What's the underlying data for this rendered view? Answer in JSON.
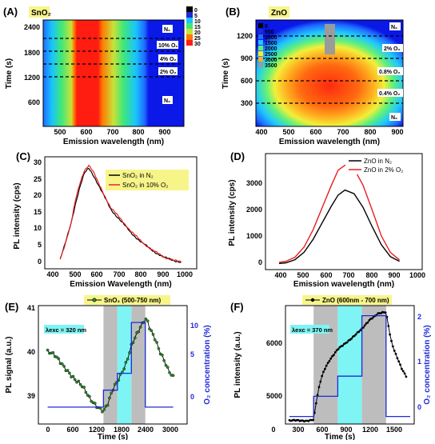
{
  "panels": {
    "A": {
      "letter": "(A)",
      "tag": "SnO₂",
      "ylabel": "Time (s)",
      "xlabel": "Emission wavelength (nm)",
      "yticks": [
        "2400",
        "1800",
        "1200",
        "600"
      ],
      "xticks": [
        "500",
        "600",
        "700",
        "800",
        "900"
      ],
      "scale": [
        "0",
        "5",
        "10",
        "15",
        "20",
        "25",
        "30"
      ],
      "gas": [
        "N₂",
        "10% O₂",
        "4% O₂",
        "2% O₂",
        "N₂"
      ]
    },
    "B": {
      "letter": "(B)",
      "tag": "ZnO",
      "ylabel": "Time (s)",
      "xlabel": "Emission wavelength (nm)",
      "yticks": [
        "1200",
        "900",
        "600",
        "300"
      ],
      "xticks": [
        "400",
        "500",
        "600",
        "700",
        "800",
        "900"
      ],
      "scale": [
        "0",
        "500",
        "1000",
        "1500",
        "2000",
        "2500",
        "3000",
        "3500"
      ],
      "gas": [
        "N₂",
        "2% O₂",
        "0.8% O₂",
        "0.4% O₂",
        "N₂"
      ]
    },
    "C": {
      "letter": "(C)",
      "ylabel": "PL intensity (cps)",
      "xlabel": "Emission Wavelength (nm)",
      "yticks": [
        "0",
        "5",
        "10",
        "15",
        "20",
        "25",
        "30"
      ],
      "xticks": [
        "400",
        "500",
        "600",
        "700",
        "800",
        "900",
        "1000"
      ],
      "legend": [
        "SnO₂ in N₂",
        "SnO₂ in 10% O₂"
      ]
    },
    "D": {
      "letter": "(D)",
      "ylabel": "PL intensity (cps)",
      "xlabel": "Emission wavelength (nm)",
      "yticks": [
        "0",
        "1000",
        "2000",
        "3000"
      ],
      "xticks": [
        "400",
        "500",
        "600",
        "700",
        "800",
        "900",
        "1000"
      ],
      "legend": [
        "ZnO in N₂",
        "ZnO in 2% O₂"
      ]
    },
    "E": {
      "letter": "(E)",
      "ylabel": "PL signal (a.u.)",
      "xlabel": "Time (s)",
      "ylabel2": "O₂ concentration (%)",
      "yticks": [
        "39",
        "40",
        "41"
      ],
      "xticks": [
        "0",
        "600",
        "1200",
        "1800",
        "2400",
        "3000"
      ],
      "yticks2": [
        "0",
        "5",
        "10"
      ],
      "legend": "SnO₂ (500-750 nm)",
      "exc": "λexc = 320 nm"
    },
    "F": {
      "letter": "(F)",
      "ylabel": "PL intensity (a.u.)",
      "xlabel": "Time (s)",
      "ylabel2": "O₂ concentration (%)",
      "yticks": [
        "5000",
        "6000"
      ],
      "xticks": [
        "0",
        "300",
        "600",
        "900",
        "1200",
        "1500"
      ],
      "yticks2": [
        "0",
        "1",
        "2"
      ],
      "legend": "ZnO (600nm - 700 nm)",
      "exc": "λexc = 370 nm"
    }
  },
  "colors": {
    "black": "#000000",
    "red": "#e8201f",
    "blue": "#1f2ad8",
    "green": "#2b8a2b",
    "gray": "#bdbdbd",
    "cyan": "#7ff4f4",
    "tag": "#f7f58a"
  },
  "chart_data": [
    {
      "type": "heatmap",
      "panel": "A",
      "xlabel": "Emission wavelength (nm)",
      "ylabel": "Time (s)",
      "xlim": [
        430,
        970
      ],
      "ylim": [
        420,
        2750
      ],
      "scale_range": [
        0,
        30
      ],
      "profile": {
        "wavelength": [
          430,
          470,
          500,
          530,
          560,
          590,
          620,
          650,
          700,
          750,
          800,
          850,
          900,
          950,
          970
        ],
        "intensity": [
          4,
          13,
          17,
          22,
          29,
          29,
          28,
          24,
          19,
          15,
          11,
          6,
          3,
          1,
          1
        ]
      },
      "gas_switch_times": [
        1200,
        1500,
        1800,
        2100
      ]
    },
    {
      "type": "heatmap",
      "panel": "B",
      "xlabel": "Emission wavelength (nm)",
      "ylabel": "Time (s)",
      "xlim": [
        380,
        920
      ],
      "ylim": [
        150,
        1380
      ],
      "scale_range": [
        0,
        3500
      ],
      "gas_switch_times": [
        300,
        600,
        900,
        1200
      ]
    },
    {
      "type": "line",
      "panel": "C",
      "xlabel": "Emission Wavelength (nm)",
      "ylabel": "PL intensity (cps)",
      "xlim": [
        360,
        1050
      ],
      "ylim": [
        -2,
        32
      ],
      "series": [
        {
          "name": "SnO₂ in N₂",
          "x": [
            430,
            450,
            480,
            500,
            520,
            540,
            560,
            580,
            600,
            630,
            660,
            700,
            750,
            800,
            850,
            900,
            950,
            980
          ],
          "values": [
            1,
            5,
            12,
            18,
            23,
            27,
            28.5,
            26.5,
            24,
            20,
            16,
            13,
            9,
            6,
            3.5,
            1.5,
            0.5,
            0
          ]
        },
        {
          "name": "SnO₂ in 10% O₂",
          "x": [
            430,
            450,
            480,
            500,
            520,
            540,
            560,
            580,
            600,
            630,
            660,
            700,
            750,
            800,
            850,
            900,
            950,
            980
          ],
          "values": [
            1,
            5,
            12,
            19,
            24,
            28,
            29.5,
            27.5,
            24.5,
            20.5,
            16.5,
            13.5,
            9.5,
            6.2,
            3.6,
            1.6,
            0.5,
            0
          ]
        }
      ]
    },
    {
      "type": "line",
      "panel": "D",
      "xlabel": "Emission wavelength (nm)",
      "ylabel": "PL intensity (cps)",
      "xlim": [
        330,
        1020
      ],
      "ylim": [
        -200,
        4000
      ],
      "series": [
        {
          "name": "ZnO in N₂",
          "x": [
            390,
            420,
            460,
            500,
            540,
            580,
            620,
            650,
            680,
            720,
            760,
            800,
            840,
            880,
            920
          ],
          "values": [
            20,
            45,
            160,
            430,
            900,
            1500,
            2100,
            2500,
            2680,
            2550,
            2050,
            1350,
            700,
            270,
            100
          ]
        },
        {
          "name": "ZnO in 2% O₂",
          "x": [
            390,
            420,
            460,
            500,
            540,
            580,
            620,
            650,
            680,
            720,
            760,
            800,
            840,
            880,
            920
          ],
          "values": [
            60,
            100,
            250,
            620,
            1250,
            2050,
            2850,
            3400,
            3580,
            3450,
            2850,
            1950,
            1020,
            420,
            150
          ]
        }
      ]
    },
    {
      "type": "line",
      "panel": "E",
      "xlabel": "Time (s)",
      "ylabel": "PL signal (a.u.)",
      "ylabel2": "O₂ concentration (%)",
      "xlim": [
        -200,
        3000
      ],
      "ylim": [
        38.6,
        41.05
      ],
      "ylim2": [
        -2,
        12
      ],
      "shaded": [
        {
          "from": 1200,
          "to": 1500,
          "color": "gray"
        },
        {
          "from": 1500,
          "to": 1800,
          "color": "cyan"
        },
        {
          "from": 1800,
          "to": 2100,
          "color": "gray"
        }
      ],
      "series": [
        {
          "name": "SnO₂ (500-750 nm)",
          "axis": "left",
          "x": [
            0,
            150,
            300,
            450,
            600,
            750,
            900,
            1050,
            1200,
            1300,
            1400,
            1500,
            1600,
            1700,
            1800,
            1900,
            2000,
            2100,
            2150,
            2200,
            2300,
            2400,
            2500,
            2600,
            2700
          ],
          "values": [
            40.1,
            40.0,
            39.85,
            39.7,
            39.5,
            39.35,
            39.15,
            39.0,
            38.85,
            39.0,
            39.3,
            39.5,
            39.7,
            39.9,
            40.2,
            40.4,
            40.6,
            40.8,
            40.75,
            40.6,
            40.4,
            40.1,
            39.9,
            39.7,
            39.6
          ]
        },
        {
          "name": "O₂ concentration",
          "axis": "right",
          "x": [
            0,
            1200,
            1200,
            1500,
            1500,
            1800,
            1800,
            2100,
            2100,
            2700
          ],
          "values": [
            0,
            0,
            2,
            2,
            4,
            4,
            10,
            10,
            0,
            0
          ]
        }
      ]
    },
    {
      "type": "line",
      "panel": "F",
      "xlabel": "Time (s)",
      "ylabel": "PL intensity (a.u.)",
      "ylabel2": "O₂ concentration (%)",
      "xlim": [
        -50,
        1550
      ],
      "ylim": [
        4750,
        6500
      ],
      "ylim2": [
        -0.15,
        2.2
      ],
      "shaded": [
        {
          "from": 300,
          "to": 600,
          "color": "gray"
        },
        {
          "from": 600,
          "to": 900,
          "color": "cyan"
        },
        {
          "from": 900,
          "to": 1200,
          "color": "gray"
        }
      ],
      "series": [
        {
          "name": "ZnO (600nm - 700 nm)",
          "axis": "left",
          "x": [
            0,
            100,
            200,
            300,
            330,
            360,
            400,
            450,
            500,
            600,
            700,
            800,
            900,
            1000,
            1100,
            1200,
            1230,
            1260,
            1300,
            1350,
            1400,
            1450
          ],
          "values": [
            4800,
            4800,
            4800,
            4810,
            5050,
            5250,
            5450,
            5600,
            5700,
            5850,
            5950,
            6050,
            6150,
            6300,
            6380,
            6400,
            6200,
            6000,
            5850,
            5700,
            5550,
            5450
          ]
        },
        {
          "name": "O₂ concentration",
          "axis": "right",
          "x": [
            0,
            300,
            300,
            600,
            600,
            900,
            900,
            1200,
            1200,
            1500
          ],
          "values": [
            0,
            0,
            0.4,
            0.4,
            0.8,
            0.8,
            2,
            2,
            0,
            0
          ]
        }
      ]
    }
  ]
}
